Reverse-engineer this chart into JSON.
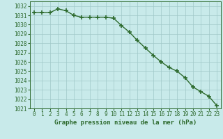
{
  "x": [
    0,
    1,
    2,
    3,
    4,
    5,
    6,
    7,
    8,
    9,
    10,
    11,
    12,
    13,
    14,
    15,
    16,
    17,
    18,
    19,
    20,
    21,
    22,
    23
  ],
  "y": [
    1031.3,
    1031.3,
    1031.3,
    1031.7,
    1031.5,
    1031.0,
    1030.8,
    1030.8,
    1030.8,
    1030.8,
    1030.7,
    1029.9,
    1029.2,
    1028.3,
    1027.5,
    1026.7,
    1026.0,
    1025.4,
    1025.0,
    1024.3,
    1023.3,
    1022.8,
    1022.3,
    1021.3
  ],
  "line_color": "#2d6a2d",
  "marker_color": "#2d6a2d",
  "bg_color": "#c8eaea",
  "grid_color": "#a0c8c8",
  "xlabel": "Graphe pression niveau de la mer (hPa)",
  "ylim": [
    1021,
    1032.5
  ],
  "xlim": [
    -0.5,
    23.5
  ],
  "yticks": [
    1021,
    1022,
    1023,
    1024,
    1025,
    1026,
    1027,
    1028,
    1029,
    1030,
    1031,
    1032
  ],
  "xticks": [
    0,
    1,
    2,
    3,
    4,
    5,
    6,
    7,
    8,
    9,
    10,
    11,
    12,
    13,
    14,
    15,
    16,
    17,
    18,
    19,
    20,
    21,
    22,
    23
  ],
  "tick_fontsize": 5.5,
  "xlabel_fontsize": 6.5,
  "line_width": 1.0,
  "marker_size": 4
}
